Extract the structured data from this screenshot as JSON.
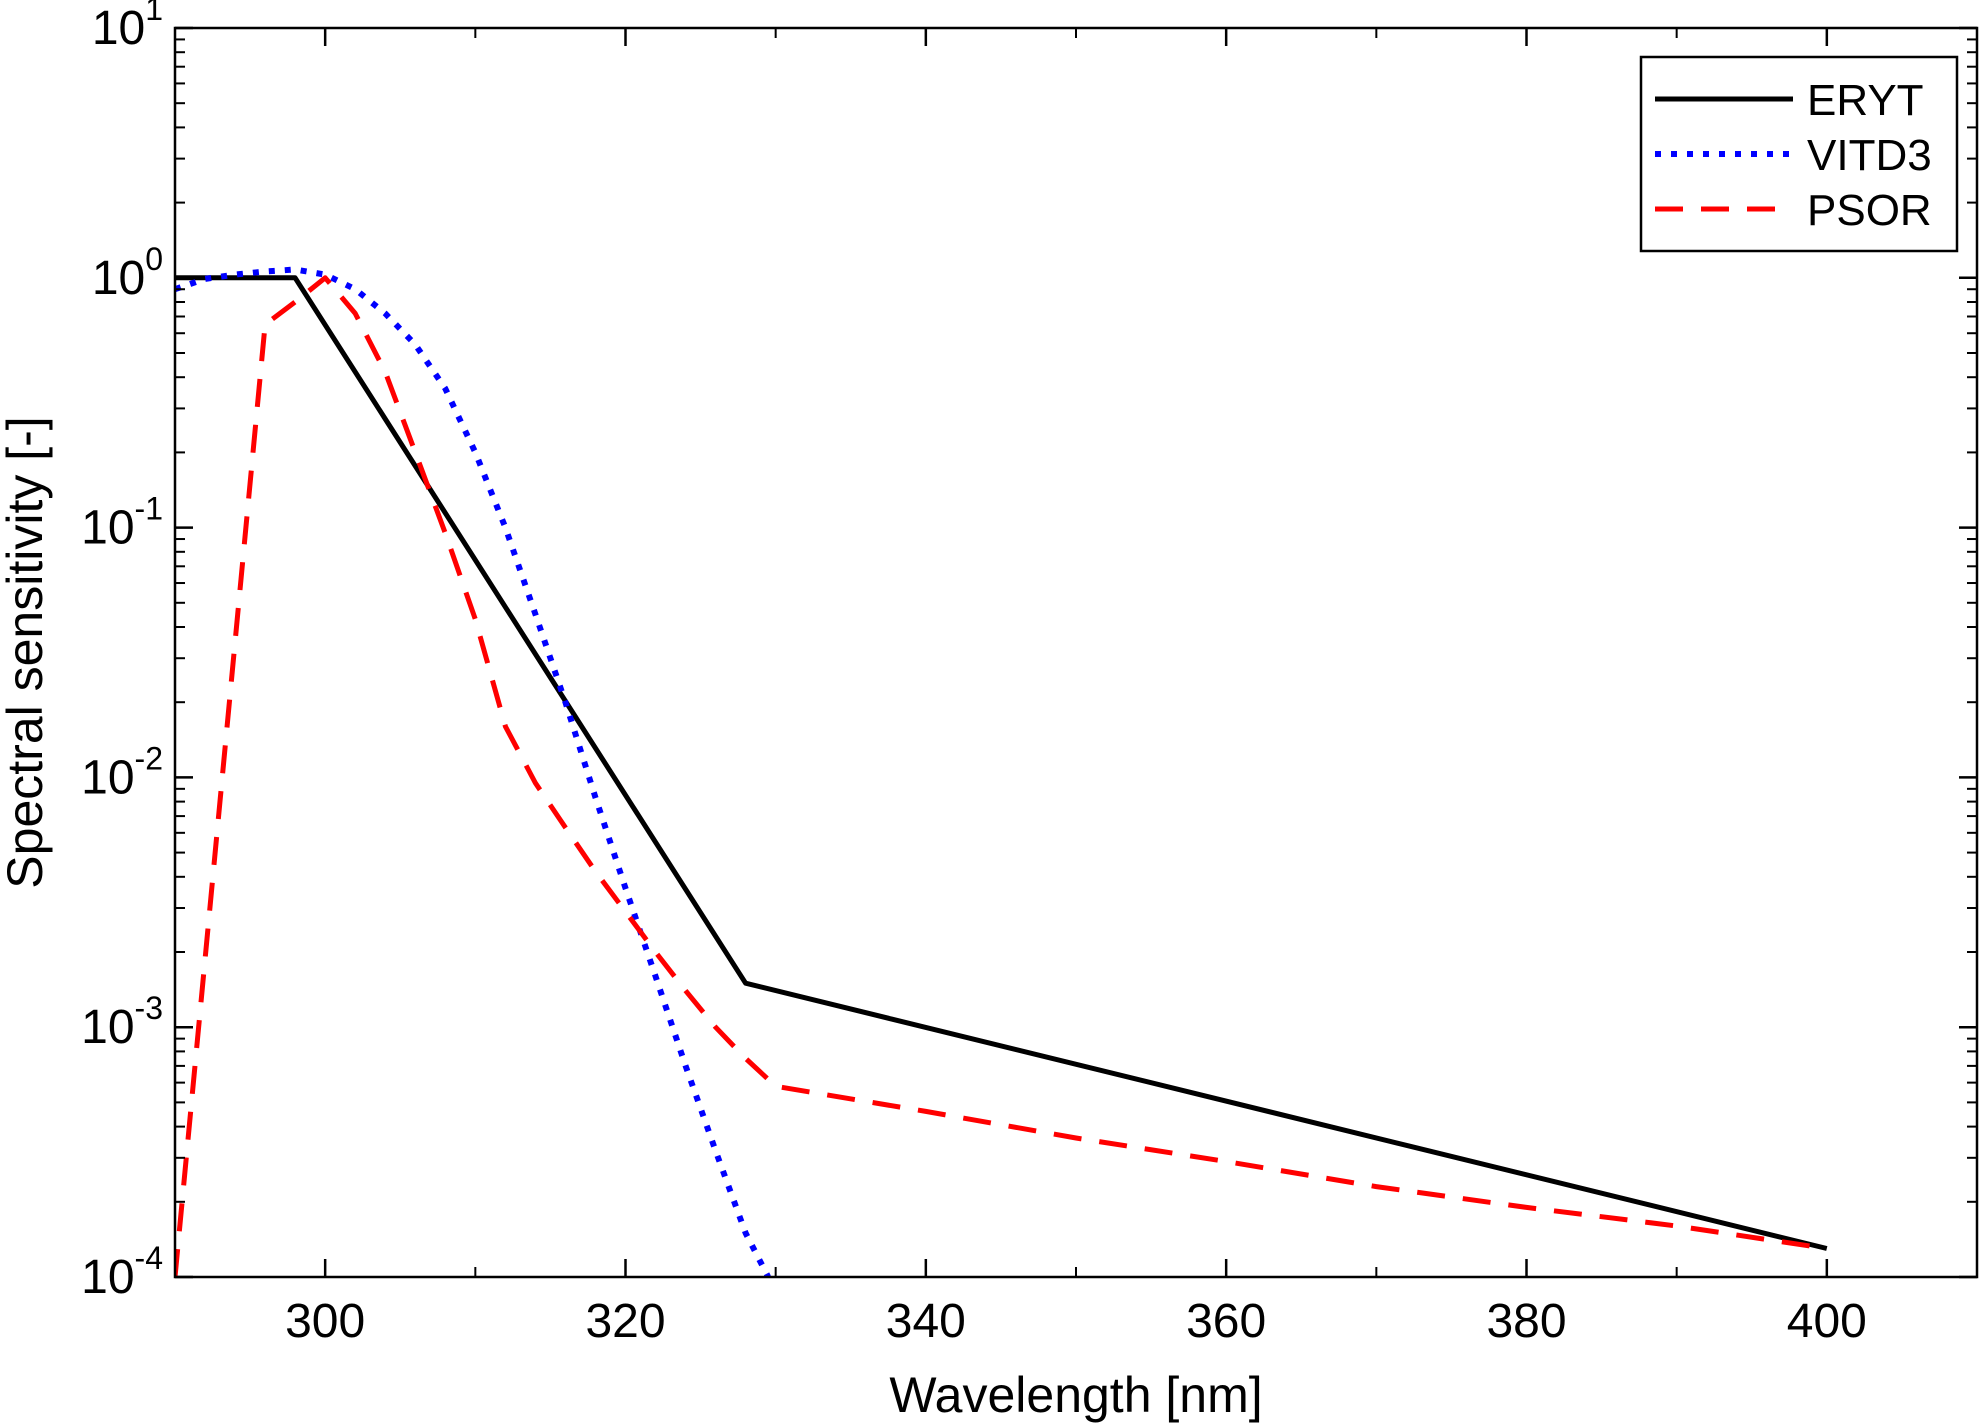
{
  "chart_data": {
    "type": "line",
    "xlabel": "Wavelength [nm]",
    "ylabel": "Spectral sensitivity [-]",
    "xlim": [
      290,
      410
    ],
    "ylim": [
      0.0001,
      10
    ],
    "yscale": "log",
    "x_ticks": [
      300,
      320,
      340,
      360,
      380,
      400
    ],
    "y_ticks": [
      {
        "base": "10",
        "exp": "1",
        "value": 10
      },
      {
        "base": "10",
        "exp": "0",
        "value": 1
      },
      {
        "base": "10",
        "exp": "-1",
        "value": 0.1
      },
      {
        "base": "10",
        "exp": "-2",
        "value": 0.01
      },
      {
        "base": "10",
        "exp": "-3",
        "value": 0.001
      },
      {
        "base": "10",
        "exp": "-4",
        "value": 0.0001
      }
    ],
    "grid": false,
    "legend_position": "top-right",
    "series": [
      {
        "name": "ERYT",
        "color": "#000000",
        "style": "solid",
        "x": [
          290,
          298,
          328,
          400
        ],
        "y": [
          1.0,
          1.0,
          0.0015,
          0.00013
        ]
      },
      {
        "name": "VITD3",
        "color": "#0000ff",
        "style": "dotted",
        "x": [
          290,
          292,
          294,
          296,
          298,
          300,
          302,
          304,
          306,
          308,
          310,
          312,
          314,
          316,
          318,
          320,
          322,
          324,
          326,
          328,
          329.5
        ],
        "y": [
          0.9,
          0.99,
          1.03,
          1.06,
          1.08,
          1.03,
          0.9,
          0.72,
          0.54,
          0.36,
          0.2,
          0.1,
          0.045,
          0.02,
          0.0083,
          0.0036,
          0.0016,
          0.0007,
          0.00032,
          0.00015,
          0.0001
        ]
      },
      {
        "name": "PSOR",
        "color": "#ff0000",
        "style": "dashed",
        "x": [
          290,
          296,
          298,
          300,
          302,
          304,
          306,
          308,
          310,
          312,
          314,
          316,
          318,
          320,
          322,
          324,
          326,
          328,
          330,
          340,
          350,
          360,
          370,
          380,
          390,
          400
        ],
        "y": [
          0.0001,
          0.65,
          0.8,
          1.0,
          0.72,
          0.42,
          0.2,
          0.095,
          0.043,
          0.016,
          0.0095,
          0.0063,
          0.0042,
          0.0029,
          0.002,
          0.0014,
          0.001,
          0.00075,
          0.00058,
          0.00046,
          0.00036,
          0.00029,
          0.00023,
          0.00019,
          0.00016,
          0.00013
        ]
      }
    ]
  }
}
